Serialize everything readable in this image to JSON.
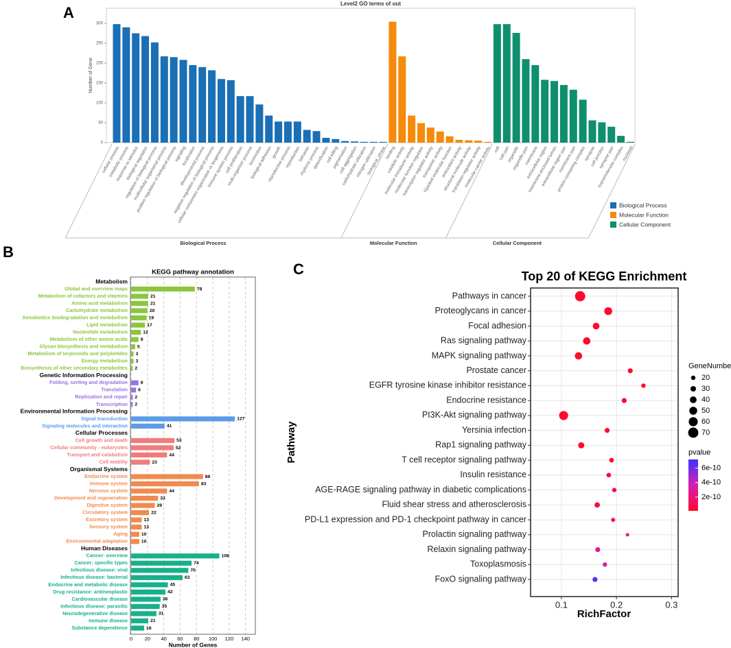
{
  "chart_data": [
    {
      "panel": "A",
      "type": "bar",
      "title": "Level2 GO terms of out",
      "y_label": "Number of Gene",
      "ylim": [
        0,
        338
      ],
      "yticks": [
        0,
        50,
        100,
        150,
        200,
        250,
        300
      ],
      "groups": [
        {
          "name": "Biological Process",
          "color": "#1a6fb5",
          "categories": [
            "cellular process",
            "metabolic process",
            "response to stimulus",
            "biological regulation",
            "regulation of biological process",
            "multicellular organismal process",
            "positive regulation of biological process",
            "signaling",
            "localization",
            "developmental process",
            "negative regulation of biological process",
            "cellular component organization or biogenesis",
            "immune system process",
            "cell proliferation",
            "multi-organism process",
            "locomotion",
            "biological adhesion",
            "growth",
            "reproductive process",
            "reproduction",
            "behavior",
            "rhythmic process",
            "detoxification",
            "cell killing",
            "pigmentation",
            "cell aggregation",
            "carbohydrate utilization",
            "nitrogen utilization",
            "biological_phase"
          ],
          "values": [
            298,
            290,
            275,
            268,
            252,
            217,
            215,
            208,
            195,
            190,
            182,
            160,
            157,
            117,
            117,
            96,
            68,
            53,
            53,
            53,
            32,
            29,
            12,
            9,
            4,
            3,
            2,
            2,
            2
          ]
        },
        {
          "name": "Molecular Function",
          "color": "#f58a0b",
          "categories": [
            "binding",
            "catalytic activity",
            "molecular transducer activity",
            "molecular function regulator",
            "transcription regulator activity",
            "transporter activity",
            "hijacked molecular function",
            "antioxidant activity",
            "structural molecule activity",
            "translation regulator activity",
            "molecular carrier activity"
          ],
          "values": [
            304,
            217,
            68,
            49,
            38,
            28,
            16,
            7,
            6,
            5,
            2
          ]
        },
        {
          "name": "Cellular Component",
          "color": "#0f8f6e",
          "categories": [
            "cell",
            "cell part",
            "organelle",
            "organelle part",
            "membrane",
            "extracellular region",
            "membrane-enclosed lumen",
            "extracellular region part",
            "membrane part",
            "protein-containing complex",
            "synapse",
            "cell junction",
            "synapse part",
            "supramolecular complex",
            "nucleoid"
          ],
          "values": [
            298,
            298,
            276,
            210,
            195,
            158,
            155,
            145,
            133,
            108,
            56,
            51,
            40,
            17,
            2
          ]
        }
      ]
    },
    {
      "panel": "B",
      "type": "hbar",
      "title": "KEGG pathway annotation",
      "x_label": "Number of Genes",
      "xlim": [
        0,
        152
      ],
      "xticks": [
        0,
        20,
        40,
        60,
        80,
        100,
        120,
        140
      ],
      "grid": true,
      "groups": [
        {
          "name": "Metabolism",
          "color": "#8cc63e",
          "categories": [
            "Global and overview maps",
            "Metabolism of cofactors and vitamins",
            "Amino acid metabolism",
            "Carbohydrate metabolism",
            "Xenobiotics biodegradation and metabolism",
            "Lipid metabolism",
            "Nucleotide metabolism",
            "Metabolism of other amino acids",
            "Glycan biosynthesis and metabolism",
            "Metabolism of terpenoids and polyketides",
            "Energy metabolism",
            "Biosynthesis of other secondary metabolites"
          ],
          "values": [
            78,
            21,
            21,
            20,
            19,
            17,
            12,
            9,
            5,
            3,
            3,
            2
          ]
        },
        {
          "name": "Genetic Information Processing",
          "color": "#9a72e0",
          "categories": [
            "Folding, sorting and degradation",
            "Translation",
            "Replication and repair",
            "Transcription"
          ],
          "values": [
            9,
            6,
            2,
            2
          ]
        },
        {
          "name": "Environmental Information Processing",
          "color": "#5b9be8",
          "categories": [
            "Signal transduction",
            "Signaling molecules and interaction"
          ],
          "values": [
            127,
            41
          ]
        },
        {
          "name": "Cellular Processes",
          "color": "#f27b7b",
          "categories": [
            "Cell growth and death",
            "Cellular community - eukaryotes",
            "Transport and catabolism",
            "Cell motility"
          ],
          "values": [
            53,
            52,
            44,
            23
          ]
        },
        {
          "name": "Organismal Systems",
          "color": "#f28a4f",
          "categories": [
            "Endocrine system",
            "Immune system",
            "Nervous system",
            "Development and regeneration",
            "Digestive system",
            "Circulatory system",
            "Excretory system",
            "Sensory system",
            "Aging",
            "Environmental adaptation"
          ],
          "values": [
            88,
            83,
            44,
            33,
            29,
            22,
            13,
            13,
            10,
            10
          ]
        },
        {
          "name": "Human Diseases",
          "color": "#17b08a",
          "categories": [
            "Cancer: overview",
            "Cancer: specific types",
            "Infectious disease: viral",
            "Infectious disease: bacterial",
            "Endocrine and metabolic disease",
            "Drug resistance: antineoplastic",
            "Cardiovascular disease",
            "Infectious disease: parasitic",
            "Neurodegenerative disease",
            "Immune disease",
            "Substance dependence"
          ],
          "values": [
            108,
            74,
            70,
            63,
            45,
            42,
            36,
            35,
            31,
            21,
            16
          ]
        }
      ]
    },
    {
      "panel": "C",
      "type": "bubble",
      "title": "Top 20 of KEGG Enrichment",
      "x_label": "RichFactor",
      "y_label": "Pathway",
      "xlim": [
        0.044,
        0.312
      ],
      "xticks": [
        0.1,
        0.2,
        0.3
      ],
      "grid": true,
      "categories": [
        "Pathways in cancer",
        "Proteoglycans in cancer",
        "Focal adhesion",
        "Ras signaling pathway",
        "MAPK signaling pathway",
        "Prostate cancer",
        "EGFR tyrosine kinase inhibitor resistance",
        "Endocrine resistance",
        "PI3K-Akt signaling pathway",
        "Yersinia infection",
        "Rap1 signaling pathway",
        "T cell receptor signaling pathway",
        "Insulin resistance",
        "AGE-RAGE signaling pathway in diabetic complications",
        "Fluid shear stress and atherosclerosis",
        "PD-L1 expression and PD-1 checkpoint pathway in cancer",
        "Prolactin signaling pathway",
        "Relaxin signaling pathway",
        "Toxoplasmosis",
        "FoxO signaling pathway"
      ],
      "values": [
        0.134,
        0.185,
        0.163,
        0.146,
        0.131,
        0.225,
        0.249,
        0.214,
        0.104,
        0.183,
        0.136,
        0.191,
        0.186,
        0.196,
        0.165,
        0.194,
        0.22,
        0.166,
        0.179,
        0.161
      ],
      "sizes": [
        70,
        50,
        40,
        45,
        45,
        25,
        20,
        25,
        60,
        25,
        35,
        22,
        22,
        20,
        28,
        18,
        12,
        25,
        20,
        25
      ],
      "pvalues": [
        1e-14,
        1e-12,
        1e-12,
        1e-12,
        1e-12,
        1e-11,
        1e-11,
        1e-11,
        1e-13,
        2e-11,
        1e-12,
        5e-11,
        5e-11,
        8e-11,
        6e-11,
        1.8e-10,
        2.6e-10,
        2.8e-10,
        3.8e-10,
        6.5e-10
      ],
      "size_legend": {
        "title": "GeneNumber",
        "values": [
          20,
          30,
          40,
          50,
          60,
          70
        ]
      },
      "color_legend": {
        "title": "pvalue",
        "clim": [
          1e-11,
          7.2e-10
        ],
        "colors": [
          "#ff0a2e",
          "#d61fb2",
          "#3a33ff"
        ],
        "ticks": [
          {
            "value": 2e-10,
            "label": "2e-10"
          },
          {
            "value": 4e-10,
            "label": "4e-10"
          },
          {
            "value": 6e-10,
            "label": "6e-10"
          }
        ]
      }
    }
  ]
}
